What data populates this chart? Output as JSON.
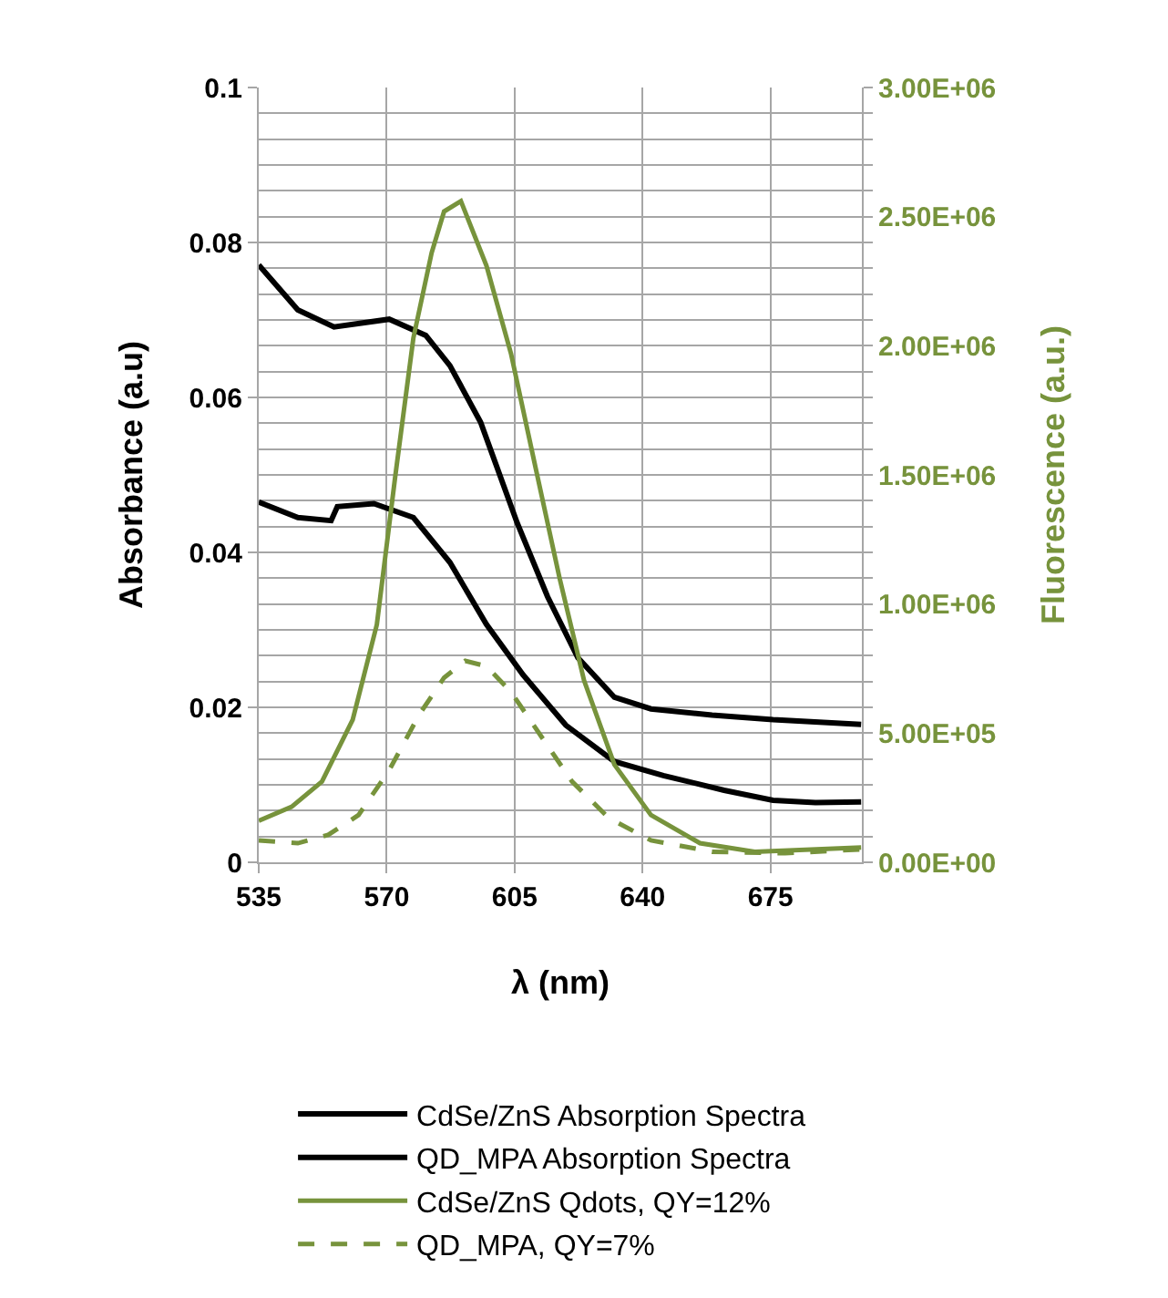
{
  "chart_data": {
    "type": "line",
    "xlabel": "λ (nm)",
    "ylabel": "Absorbance (a.u)",
    "y2label": "Fluorescence (a.u.)",
    "xlim": [
      535,
      700
    ],
    "xticks": [
      535,
      570,
      605,
      640,
      675
    ],
    "ylim": [
      0,
      0.1
    ],
    "yticks": [
      0,
      0.02,
      0.04,
      0.06,
      0.08,
      0.1
    ],
    "y2lim": [
      0,
      3000000
    ],
    "y2ticks": [
      {
        "value": 0,
        "label": "0.00E+00"
      },
      {
        "value": 100000,
        "label": null
      },
      {
        "value": 200000,
        "label": null
      },
      {
        "value": 300000,
        "label": null
      },
      {
        "value": 400000,
        "label": null
      },
      {
        "value": 500000,
        "label": "5.00E+05"
      },
      {
        "value": 600000,
        "label": null
      },
      {
        "value": 700000,
        "label": null
      },
      {
        "value": 800000,
        "label": null
      },
      {
        "value": 900000,
        "label": null
      },
      {
        "value": 1000000,
        "label": "1.00E+06"
      },
      {
        "value": 1100000,
        "label": null
      },
      {
        "value": 1200000,
        "label": null
      },
      {
        "value": 1300000,
        "label": null
      },
      {
        "value": 1400000,
        "label": null
      },
      {
        "value": 1500000,
        "label": "1.50E+06"
      },
      {
        "value": 1600000,
        "label": null
      },
      {
        "value": 1700000,
        "label": null
      },
      {
        "value": 1800000,
        "label": null
      },
      {
        "value": 1900000,
        "label": null
      },
      {
        "value": 2000000,
        "label": "2.00E+06"
      },
      {
        "value": 2100000,
        "label": null
      },
      {
        "value": 2200000,
        "label": null
      },
      {
        "value": 2300000,
        "label": null
      },
      {
        "value": 2400000,
        "label": null
      },
      {
        "value": 2500000,
        "label": "2.50E+06"
      },
      {
        "value": 2600000,
        "label": null
      },
      {
        "value": 2700000,
        "label": null
      },
      {
        "value": 2800000,
        "label": null
      },
      {
        "value": 2900000,
        "label": null
      },
      {
        "value": 3000000,
        "label": "3.00E+06"
      }
    ],
    "grid": true,
    "legend": "bottom",
    "marker": "none",
    "series": [
      {
        "name": "CdSe/ZnS Absorption Spectra",
        "color": "#000000",
        "line_style": "solid",
        "x": [
          535,
          545.7,
          555.6,
          570.7,
          580.7,
          587.3,
          595.7,
          605.7,
          614,
          622.3,
          632.3,
          642.3,
          659,
          675.7,
          699.8
        ],
        "values": [
          0.0771,
          0.0713,
          0.0691,
          0.0701,
          0.068,
          0.0641,
          0.0568,
          0.0438,
          0.0343,
          0.0264,
          0.0213,
          0.0198,
          0.019,
          0.0184,
          0.0178
        ]
      },
      {
        "name": "QD_MPA Absorption Spectra",
        "color": "#000000",
        "line_style": "solid",
        "x": [
          535,
          545.7,
          554.8,
          556.5,
          566.5,
          577.3,
          587.3,
          597.3,
          607.3,
          619,
          632.3,
          645.7,
          662.3,
          675.7,
          687.3,
          699.8
        ],
        "values": [
          0.0465,
          0.0445,
          0.0441,
          0.0459,
          0.0463,
          0.0445,
          0.0387,
          0.0307,
          0.0242,
          0.0177,
          0.013,
          0.0112,
          0.0093,
          0.008,
          0.0077,
          0.0078
        ]
      },
      {
        "name": "CdSe/ZnS Qdots, QY=12%",
        "color": "#77933c",
        "line_style": "solid",
        "axis": "y2",
        "x": [
          535,
          544,
          552.3,
          560.7,
          567.3,
          572.3,
          577.3,
          582.3,
          585.7,
          590.3,
          597.3,
          604,
          610.7,
          617.3,
          624,
          632.3,
          642.3,
          655.7,
          670.7,
          699.8
        ],
        "values": [
          161000,
          215000,
          313000,
          552000,
          920000,
          1490000,
          2030000,
          2360000,
          2520000,
          2560000,
          2310000,
          1970000,
          1530000,
          1100000,
          704000,
          378000,
          183000,
          74000,
          41000,
          57000
        ]
      },
      {
        "name": "QD_MPA, QY=7%",
        "color": "#77933c",
        "line_style": "dashed",
        "axis": "y2",
        "x": [
          535,
          545.7,
          554,
          562.3,
          570.7,
          579,
          585.7,
          591.5,
          597.3,
          604,
          612.3,
          620.7,
          630.7,
          642.3,
          659,
          679,
          699.8
        ],
        "values": [
          85000,
          74000,
          106000,
          183000,
          357000,
          574000,
          715000,
          780000,
          759000,
          660000,
          487000,
          313000,
          172000,
          85000,
          41000,
          35000,
          50000
        ]
      }
    ]
  }
}
